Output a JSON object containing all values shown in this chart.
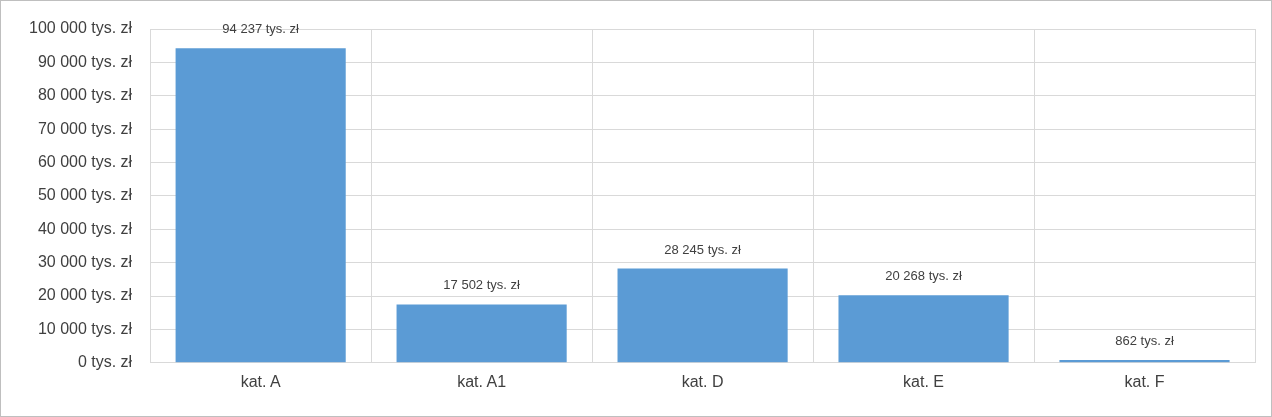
{
  "chart_data": {
    "type": "bar",
    "categories": [
      "kat. A",
      "kat. A1",
      "kat. D",
      "kat. E",
      "kat. F"
    ],
    "values": [
      94237,
      17502,
      28245,
      20268,
      862
    ],
    "value_labels": [
      "94 237 tys. zł",
      "17 502 tys. zł",
      "28 245 tys. zł",
      "20 268 tys. zł",
      "862 tys. zł"
    ],
    "color": "#5b9bd5",
    "ylim": [
      0,
      100000
    ],
    "yticks": [
      {
        "value": 0,
        "label": "0 tys. zł"
      },
      {
        "value": 10000,
        "label": "10 000 tys. zł"
      },
      {
        "value": 20000,
        "label": "20 000 tys. zł"
      },
      {
        "value": 30000,
        "label": "30 000 tys. zł"
      },
      {
        "value": 40000,
        "label": "40 000 tys. zł"
      },
      {
        "value": 50000,
        "label": "50 000 tys. zł"
      },
      {
        "value": 60000,
        "label": "60 000 tys. zł"
      },
      {
        "value": 70000,
        "label": "70 000 tys. zł"
      },
      {
        "value": 80000,
        "label": "80 000 tys. zł"
      },
      {
        "value": 90000,
        "label": "90 000 tys. zł"
      },
      {
        "value": 100000,
        "label": "100 000 tys. zł"
      }
    ],
    "grid": true
  }
}
